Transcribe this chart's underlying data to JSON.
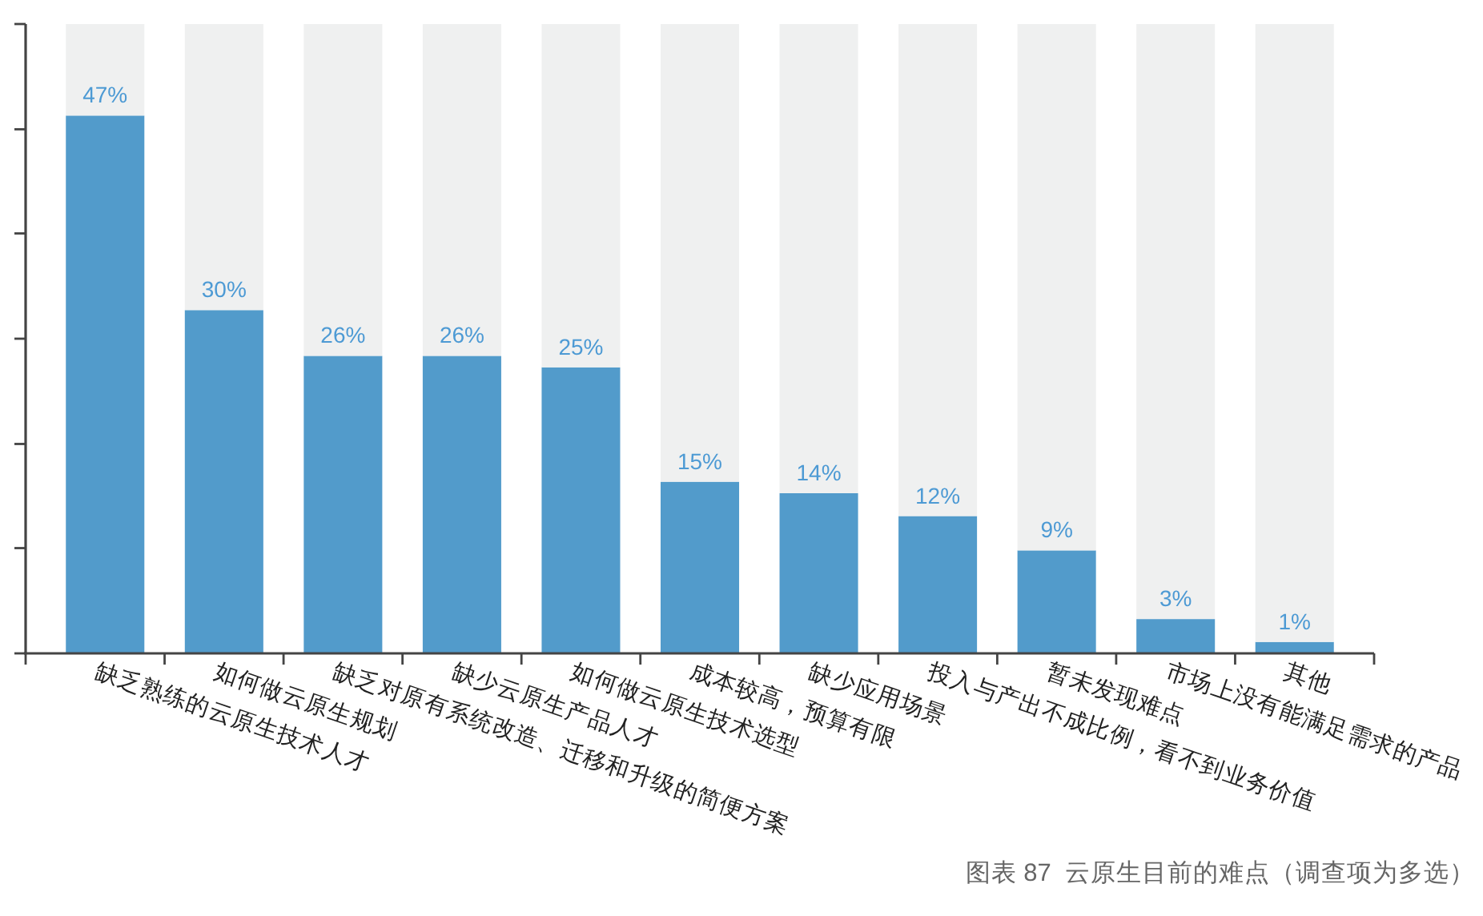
{
  "chart_data": {
    "type": "bar",
    "categories": [
      "缺乏熟练的云原生技术人才",
      "如何做云原生规划",
      "缺乏对原有系统改造、迁移和升级的简便方案",
      "缺少云原生产品人才",
      "如何做云原生技术选型",
      "成本较高，预算有限",
      "缺少应用场景",
      "投入与产出不成比例，看不到业务价值",
      "暂未发现难点",
      "市场上没有能满足需求的产品",
      "其他"
    ],
    "stacked": true,
    "series": [
      {
        "color": "#529bcb",
        "values": [
          47,
          30,
          26,
          26,
          25,
          15,
          14,
          12,
          9,
          3,
          1
        ],
        "value_labels": [
          "47%",
          "30%",
          "26%",
          "26%",
          "25%",
          "15%",
          "14%",
          "12%",
          "9%",
          "3%",
          "1%"
        ]
      },
      {
        "color": "#eff0f0",
        "values": [
          8,
          25,
          29,
          29,
          30,
          40,
          41,
          43,
          46,
          52,
          54
        ]
      }
    ],
    "ylim": [
      0,
      55
    ],
    "yticks": [
      {
        "value": 0,
        "label": null
      },
      {
        "value": 9.2,
        "label": null
      },
      {
        "value": 18.3,
        "label": null
      },
      {
        "value": 27.5,
        "label": null
      },
      {
        "value": 36.7,
        "label": null
      },
      {
        "value": 45.8,
        "label": null
      },
      {
        "value": 55,
        "label": null
      }
    ],
    "annotations": [
      "图表 87  云原生目前的难点（调查项为多选）"
    ]
  }
}
